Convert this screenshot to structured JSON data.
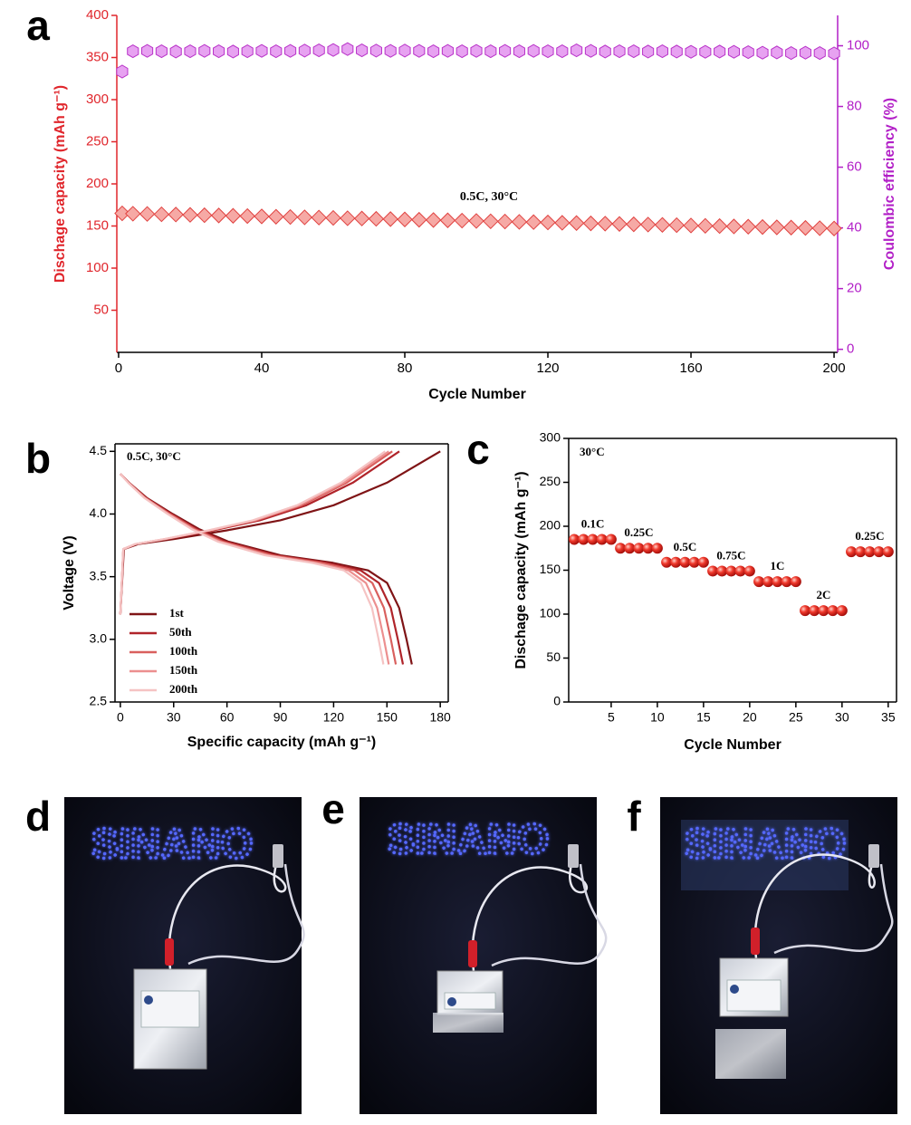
{
  "chart_data": [
    {
      "type": "scatter",
      "panel_label": "a",
      "annotation": "0.5C, 30°C",
      "x_label": "Cycle Number",
      "y_label": "Dischage capacity (mAh g⁻¹)",
      "y2_label": "Coulombic efficiency (%)",
      "xlim": [
        -0.5,
        201
      ],
      "xticks": [
        0,
        40,
        80,
        120,
        160,
        200
      ],
      "ylim": [
        0,
        400
      ],
      "yticks": [
        50,
        100,
        150,
        200,
        250,
        300,
        350,
        400
      ],
      "y2lim": [
        -1,
        110
      ],
      "y2ticks": [
        0,
        20,
        40,
        60,
        80,
        100
      ],
      "y_axis_color": "#e0262c",
      "y2_axis_color": "#b21fc7",
      "x": [
        1,
        4,
        8,
        12,
        16,
        20,
        24,
        28,
        32,
        36,
        40,
        44,
        48,
        52,
        56,
        60,
        64,
        68,
        72,
        76,
        80,
        84,
        88,
        92,
        96,
        100,
        104,
        108,
        112,
        116,
        120,
        124,
        128,
        132,
        136,
        140,
        144,
        148,
        152,
        156,
        160,
        164,
        168,
        172,
        176,
        180,
        184,
        188,
        192,
        196,
        200
      ],
      "series": [
        {
          "color": "#e0413f",
          "marker_fill": "#f6a9a5",
          "marker": "diamond",
          "values": [
            165,
            164.6,
            164.3,
            163.9,
            163.6,
            163.2,
            162.8,
            162.5,
            162.1,
            161.8,
            161.4,
            161.0,
            160.7,
            160.3,
            160.0,
            159.6,
            159.2,
            158.9,
            158.5,
            158.2,
            157.8,
            157.4,
            157.1,
            156.7,
            156.4,
            156.0,
            155.6,
            155.3,
            154.9,
            154.6,
            154.2,
            153.8,
            153.5,
            153.1,
            152.8,
            152.4,
            152.0,
            151.7,
            151.3,
            151.0,
            150.6,
            150.2,
            149.9,
            149.5,
            149.2,
            148.8,
            148.4,
            148.1,
            147.7,
            147.4,
            147.0
          ]
        },
        {
          "color": "#b832c8",
          "marker_fill": "#e7a2f1",
          "marker": "hexagon",
          "axis": "y2",
          "values": [
            91.5,
            98.2,
            98.3,
            98.2,
            98.1,
            98.2,
            98.3,
            98.2,
            98.1,
            98.2,
            98.3,
            98.2,
            98.3,
            98.4,
            98.5,
            98.6,
            98.9,
            98.5,
            98.4,
            98.3,
            98.4,
            98.3,
            98.2,
            98.3,
            98.2,
            98.3,
            98.2,
            98.3,
            98.2,
            98.3,
            98.2,
            98.2,
            98.5,
            98.3,
            98.1,
            98.2,
            98.2,
            98.1,
            98.2,
            98.1,
            98.0,
            98.0,
            98.1,
            98.0,
            97.9,
            97.7,
            97.8,
            97.6,
            97.7,
            97.6,
            97.5
          ]
        }
      ]
    },
    {
      "type": "line",
      "panel_label": "b",
      "annotation": "0.5C, 30°C",
      "x_label": "Specific capacity (mAh g⁻¹)",
      "y_label": "Voltage (V)",
      "xlim": [
        -3,
        184.5
      ],
      "xticks": [
        0,
        30,
        60,
        90,
        120,
        150,
        180
      ],
      "ylim": [
        2.5,
        4.56
      ],
      "yticks": [
        2.5,
        {
          "value": 3,
          "label": "3.0"
        },
        3.5,
        {
          "value": 4,
          "label": "4.0"
        },
        4.5
      ],
      "legend": "lower left",
      "series": [
        {
          "name": "1st",
          "color": "#7f1416",
          "x": [
            0,
            2,
            10,
            30,
            60,
            90,
            120,
            150,
            180,
            null,
            0,
            4.9,
            14.8,
            29.5,
            44.3,
            60.7,
            90.2,
            119.7,
            139.4,
            150.1,
            156.9,
            161.0,
            164
          ],
          "values": [
            3.2,
            3.72,
            3.76,
            3.8,
            3.87,
            3.95,
            4.07,
            4.25,
            4.5,
            null,
            4.32,
            4.25,
            4.13,
            4.0,
            3.88,
            3.78,
            3.67,
            3.61,
            3.55,
            3.45,
            3.25,
            3.0,
            2.8
          ]
        },
        {
          "name": "50th",
          "color": "#b0242a",
          "x": [
            0,
            1.7,
            8.8,
            26.2,
            52.3,
            78.5,
            104.7,
            130.8,
            157,
            null,
            0,
            4.8,
            14.3,
            28.6,
            42.9,
            58.8,
            87.5,
            116.1,
            135.2,
            145.5,
            152.2,
            156.1,
            159
          ],
          "values": [
            3.2,
            3.72,
            3.76,
            3.8,
            3.87,
            3.95,
            4.07,
            4.25,
            4.5,
            null,
            4.32,
            4.25,
            4.13,
            4.0,
            3.88,
            3.78,
            3.67,
            3.61,
            3.55,
            3.45,
            3.25,
            3.0,
            2.8
          ]
        },
        {
          "name": "100th",
          "color": "#d9605e",
          "x": [
            0,
            1.7,
            8.6,
            25.6,
            50.9,
            76.5,
            102.1,
            127.4,
            153,
            null,
            0,
            4.7,
            14.0,
            27.9,
            41.9,
            57.4,
            85.3,
            113.2,
            131.8,
            141.8,
            148.3,
            152.2,
            155
          ],
          "values": [
            3.2,
            3.72,
            3.76,
            3.8,
            3.87,
            3.95,
            4.07,
            4.25,
            4.5,
            null,
            4.32,
            4.25,
            4.13,
            4.0,
            3.88,
            3.78,
            3.67,
            3.61,
            3.55,
            3.45,
            3.25,
            3.0,
            2.8
          ]
        },
        {
          "name": "150th",
          "color": "#ec8f8f",
          "x": [
            0,
            1.7,
            8.5,
            25.2,
            50.3,
            75.5,
            100.7,
            125.8,
            151,
            null,
            0,
            4.5,
            13.6,
            27.2,
            40.8,
            55.9,
            83.1,
            110.2,
            128.4,
            138.2,
            144.5,
            148.3,
            151
          ],
          "values": [
            3.2,
            3.72,
            3.76,
            3.8,
            3.87,
            3.95,
            4.07,
            4.25,
            4.5,
            null,
            4.32,
            4.25,
            4.13,
            4.0,
            3.88,
            3.78,
            3.67,
            3.61,
            3.55,
            3.45,
            3.25,
            3.0,
            2.8
          ]
        },
        {
          "name": "200th",
          "color": "#f5c3c3",
          "x": [
            0,
            1.6,
            8.3,
            24.9,
            49.6,
            74.5,
            99.4,
            124.1,
            149,
            null,
            0,
            4.4,
            13.3,
            26.6,
            40.0,
            54.8,
            81.4,
            108.0,
            125.8,
            135.4,
            141.6,
            145.3,
            148
          ],
          "values": [
            3.2,
            3.72,
            3.76,
            3.8,
            3.87,
            3.95,
            4.07,
            4.25,
            4.5,
            null,
            4.32,
            4.25,
            4.13,
            4.0,
            3.88,
            3.78,
            3.67,
            3.61,
            3.55,
            3.45,
            3.25,
            3.0,
            2.8
          ]
        }
      ]
    },
    {
      "type": "scatter",
      "panel_label": "c",
      "annotation": "30°C",
      "x_label": "Cycle Number",
      "y_label": "Dischage capacity (mAh g⁻¹)",
      "xlim": [
        0.4,
        35.9
      ],
      "xticks": [
        5,
        10,
        15,
        20,
        25,
        30,
        35
      ],
      "ylim": [
        0,
        300
      ],
      "yticks": [
        0,
        50,
        100,
        150,
        200,
        250,
        300
      ],
      "rate_labels": [
        "0.1C",
        "0.25C",
        "0.5C",
        "0.75C",
        "1C",
        "2C",
        "0.25C"
      ],
      "x": [
        1,
        2,
        3,
        4,
        5,
        6,
        7,
        8,
        9,
        10,
        11,
        12,
        13,
        14,
        15,
        16,
        17,
        18,
        19,
        20,
        21,
        22,
        23,
        24,
        25,
        26,
        27,
        28,
        29,
        30,
        31,
        32,
        33,
        34,
        35
      ],
      "series": [
        {
          "color": "#e8231d",
          "marker": "circle",
          "values": [
            185,
            185,
            185,
            185,
            185,
            175,
            175,
            175,
            175,
            175,
            159,
            159,
            159,
            159,
            159,
            149,
            149,
            149,
            149,
            149,
            137,
            137,
            137,
            137,
            137,
            104,
            104,
            104,
            104,
            104,
            171,
            171,
            171,
            171,
            171
          ]
        }
      ]
    }
  ],
  "photos": [
    {
      "panel_label": "d",
      "sign": "SINANO"
    },
    {
      "panel_label": "e",
      "sign": "SINANO"
    },
    {
      "panel_label": "f",
      "sign": "SINANO"
    }
  ]
}
